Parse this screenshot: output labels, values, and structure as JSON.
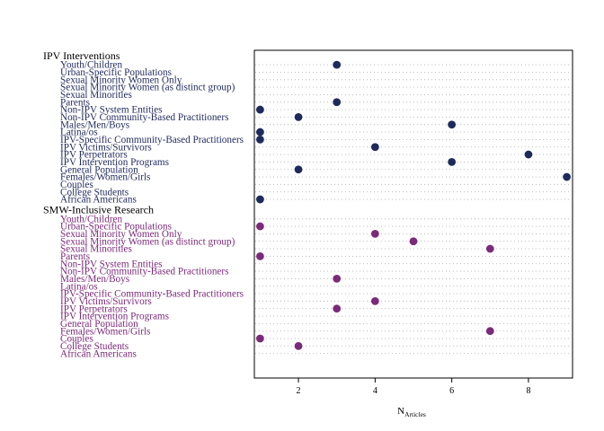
{
  "chart_data": {
    "type": "scatter",
    "x_axis": {
      "label": "N",
      "label_subscript": "Articles",
      "ticks": [
        2,
        4,
        6,
        8
      ],
      "xlim": [
        0.85,
        9.15
      ]
    },
    "grid": "dotted horizontal lines",
    "groups": [
      {
        "name": "IPV Interventions",
        "color": "#1f2a5c",
        "rows": [
          {
            "label": "Youth/Children",
            "value": 3
          },
          {
            "label": "Urban-Specific Populations",
            "value": null
          },
          {
            "label": "Sexual Minority Women Only",
            "value": null
          },
          {
            "label": "Sexual Minority Women (as distinct group)",
            "value": null
          },
          {
            "label": "Sexual Minorities",
            "value": null
          },
          {
            "label": "Parents",
            "value": 3
          },
          {
            "label": "Non-IPV System Entities",
            "value": 1
          },
          {
            "label": "Non-IPV Community-Based Practitioners",
            "value": 2
          },
          {
            "label": "Males/Men/Boys",
            "value": 6
          },
          {
            "label": "Latina/os",
            "value": 1
          },
          {
            "label": "IPV-Specific Community-Based Practitioners",
            "value": 1
          },
          {
            "label": "IPV Victims/Survivors",
            "value": 4
          },
          {
            "label": "IPV Perpetrators",
            "value": 8
          },
          {
            "label": "IPV Intervention Programs",
            "value": 6
          },
          {
            "label": "General Population",
            "value": 2
          },
          {
            "label": "Females/Women/Girls",
            "value": 9
          },
          {
            "label": "Couples",
            "value": null
          },
          {
            "label": "College Students",
            "value": null
          },
          {
            "label": "African Americans",
            "value": 1
          }
        ]
      },
      {
        "name": "SMW-Inclusive Research",
        "color": "#7b2a7a",
        "rows": [
          {
            "label": "Youth/Children",
            "value": null
          },
          {
            "label": "Urban-Specific Populations",
            "value": 1
          },
          {
            "label": "Sexual Minority Women Only",
            "value": 4
          },
          {
            "label": "Sexual Minority Women (as distinct group)",
            "value": 5
          },
          {
            "label": "Sexual Minorities",
            "value": 7
          },
          {
            "label": "Parents",
            "value": 1
          },
          {
            "label": "Non-IPV System Entities",
            "value": null
          },
          {
            "label": "Non-IPV Community-Based Practitioners",
            "value": null
          },
          {
            "label": "Males/Men/Boys",
            "value": 3
          },
          {
            "label": "Latina/os",
            "value": null
          },
          {
            "label": "IPV-Specific Community-Based Practitioners",
            "value": null
          },
          {
            "label": "IPV Victims/Survivors",
            "value": 4
          },
          {
            "label": "IPV Perpetrators",
            "value": 3
          },
          {
            "label": "IPV Intervention Programs",
            "value": null
          },
          {
            "label": "General Population",
            "value": null
          },
          {
            "label": "Females/Women/Girls",
            "value": 7
          },
          {
            "label": "Couples",
            "value": 1
          },
          {
            "label": "College Students",
            "value": 2
          },
          {
            "label": "African Americans",
            "value": null
          }
        ]
      }
    ]
  }
}
